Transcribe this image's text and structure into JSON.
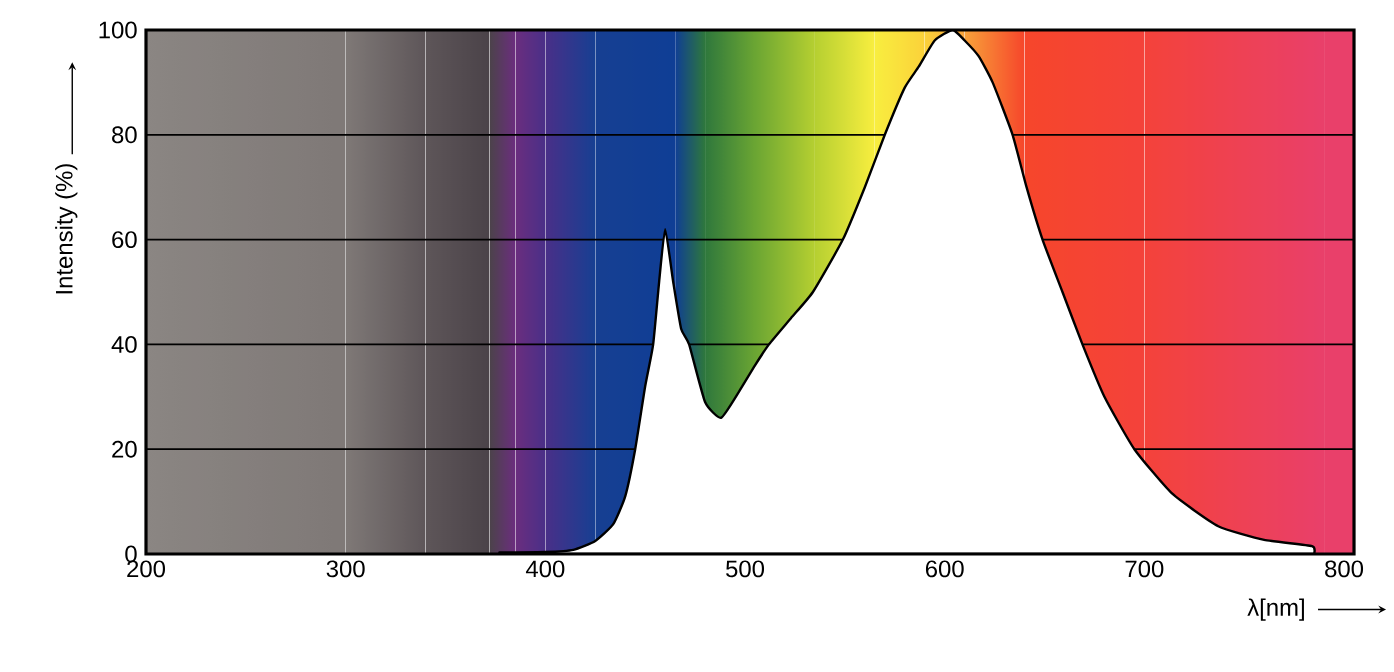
{
  "chart_data": {
    "type": "area",
    "xlabel": "λ[nm]",
    "ylabel": "Intensity (%)",
    "xlim": [
      200,
      805
    ],
    "ylim": [
      0,
      100
    ],
    "xticks": [
      200,
      300,
      400,
      500,
      600,
      700,
      800
    ],
    "yticks": [
      0,
      20,
      40,
      60,
      80,
      100
    ],
    "grid": "y",
    "x": [
      377,
      400,
      414,
      425,
      434,
      440,
      445,
      450,
      454,
      457,
      460,
      464,
      468,
      472,
      480,
      488,
      497,
      505,
      512,
      523,
      534,
      549,
      560,
      570,
      580,
      587,
      595,
      604,
      610,
      617,
      624,
      634,
      641,
      649,
      659,
      669,
      680,
      695,
      714,
      737,
      760,
      784,
      785
    ],
    "series": [
      {
        "color": "#ffffff",
        "values": [
          0.3,
          0.4,
          0.8,
          2.5,
          5.7,
          11,
          20,
          32,
          40,
          52,
          62,
          52,
          43,
          40,
          29,
          26,
          31,
          36,
          40,
          45,
          50,
          60,
          70,
          80,
          89,
          93,
          98,
          100,
          98,
          95,
          90,
          80,
          70,
          60,
          50,
          40,
          30,
          20,
          11.5,
          5.3,
          2.7,
          1.5,
          0
        ]
      }
    ],
    "bands": [
      {
        "axis": "x",
        "from": 200,
        "to": 300,
        "color": "#8b8683"
      },
      {
        "axis": "x",
        "from": 300,
        "to": 340,
        "color": "#7f7977"
      },
      {
        "axis": "x",
        "from": 340,
        "to": 372,
        "color": "#5e5659"
      },
      {
        "axis": "x",
        "from": 372,
        "to": 385,
        "color": "#4b4349"
      },
      {
        "axis": "x",
        "from": 385,
        "to": 400,
        "color": "#6b2e7e"
      },
      {
        "axis": "x",
        "from": 400,
        "to": 425,
        "color": "#4a2f88"
      },
      {
        "axis": "x",
        "from": 425,
        "to": 465,
        "color": "#173f92"
      },
      {
        "axis": "x",
        "from": 465,
        "to": 480,
        "color": "#0f3e95"
      },
      {
        "axis": "x",
        "from": 480,
        "to": 505,
        "color": "#2e773c"
      },
      {
        "axis": "x",
        "from": 505,
        "to": 535,
        "color": "#6aa533"
      },
      {
        "axis": "x",
        "from": 535,
        "to": 565,
        "color": "#b5cf31"
      },
      {
        "axis": "x",
        "from": 565,
        "to": 590,
        "color": "#f8ee3f"
      },
      {
        "axis": "x",
        "from": 590,
        "to": 610,
        "color": "#fbd23a"
      },
      {
        "axis": "x",
        "from": 610,
        "to": 640,
        "color": "#f8a23a"
      },
      {
        "axis": "x",
        "from": 640,
        "to": 700,
        "color": "#f6462b"
      },
      {
        "axis": "x",
        "from": 700,
        "to": 790,
        "color": "#f4423a"
      },
      {
        "axis": "x",
        "from": 790,
        "to": 805,
        "color": "#e9406a"
      }
    ]
  }
}
